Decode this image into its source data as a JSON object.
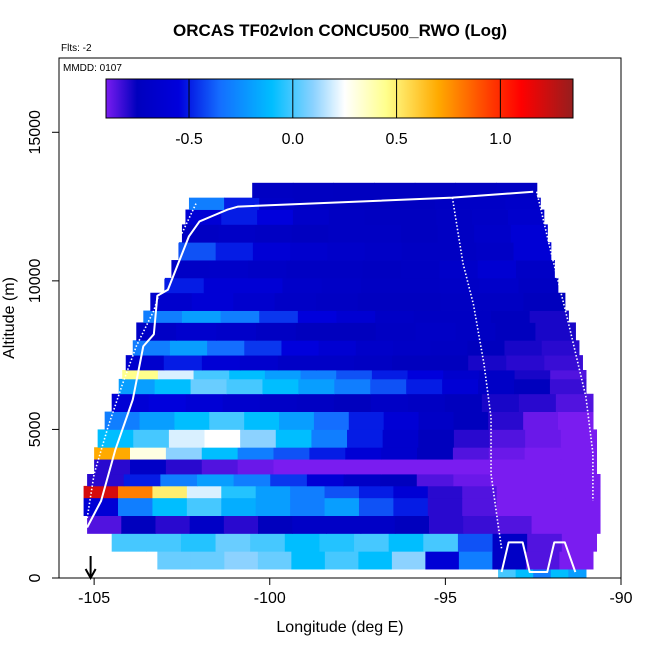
{
  "chart_data": {
    "type": "heatmap",
    "title": "ORCAS TF02vlon CONCU500_RWO (Log)",
    "subtitle_flts": "Flts: -2",
    "date_label": "MMDD: 0107",
    "xlabel": "Longitude (deg E)",
    "ylabel": "Altitude (m)",
    "xlim": [
      -106,
      -90
    ],
    "ylim": [
      0,
      17500
    ],
    "xticks": [
      -105,
      -100,
      -95,
      -90
    ],
    "xtick_labels": [
      "-105",
      "-100",
      "-95",
      "-90"
    ],
    "yticks": [
      0,
      5000,
      10000,
      15000
    ],
    "ytick_labels": [
      "0",
      "5000",
      "10000",
      "15000"
    ],
    "colorbar": {
      "range": [
        -0.9,
        1.35
      ],
      "ticks": [
        -0.5,
        0.0,
        0.5,
        1.0
      ],
      "tick_labels": [
        "-0.5",
        "0.0",
        "0.5",
        "1.0"
      ],
      "placement": "top-inside"
    },
    "colors": {
      "low": "#7a1cf0",
      "mid_low": "#0000b4",
      "cyan": "#00c0ff",
      "white": "#ffffff",
      "yellow": "#ffff80",
      "orange": "#ff9000",
      "red": "#ff0000",
      "dark_red": "#9a1f1f",
      "flight_track": "#ffffff"
    },
    "flight_start_marker": {
      "longitude": -105.1,
      "symbol": "down-arrow"
    },
    "coverage_outline": {
      "left_edge": [
        [
          -105.2,
          1700
        ],
        [
          -104.8,
          4700
        ],
        [
          -104.1,
          6800
        ],
        [
          -103.7,
          8200
        ],
        [
          -103.2,
          9500
        ],
        [
          -102.5,
          12000
        ],
        [
          -102.3,
          12800
        ]
      ],
      "top_edge": [
        [
          -102.3,
          12800
        ],
        [
          -97.0,
          13100
        ],
        [
          -94.8,
          13000
        ],
        [
          -92.4,
          13200
        ]
      ],
      "right_edge": [
        [
          -92.4,
          13200
        ],
        [
          -92.0,
          11500
        ],
        [
          -91.8,
          10000
        ],
        [
          -91.4,
          8000
        ],
        [
          -90.9,
          6000
        ],
        [
          -90.7,
          4000
        ],
        [
          -90.6,
          2500
        ],
        [
          -90.8,
          500
        ]
      ]
    },
    "flight_track": {
      "solid": [
        [
          -105.2,
          1700
        ],
        [
          -104.8,
          2600
        ],
        [
          -104.4,
          4300
        ],
        [
          -103.9,
          6000
        ],
        [
          -103.6,
          7800
        ],
        [
          -103.3,
          8200
        ],
        [
          -103.2,
          9500
        ],
        [
          -102.9,
          9700
        ],
        [
          -102.3,
          11500
        ],
        [
          -102.0,
          12000
        ],
        [
          -101.6,
          12200
        ],
        [
          -101.2,
          12400
        ],
        [
          -100.9,
          12500
        ],
        [
          -94.8,
          12800
        ],
        [
          -92.5,
          13000
        ]
      ],
      "dotted": [
        [
          -102.1,
          12600
        ],
        [
          -102.5,
          11600
        ],
        [
          -102.9,
          10500
        ],
        [
          -103.3,
          9000
        ],
        [
          -103.8,
          7800
        ],
        [
          -104.2,
          6500
        ],
        [
          -104.6,
          5100
        ],
        [
          -105.0,
          3500
        ],
        [
          -105.2,
          2000
        ]
      ],
      "descent_dotted": [
        [
          -94.8,
          12800
        ],
        [
          -94.5,
          10600
        ],
        [
          -94.2,
          9200
        ],
        [
          -93.9,
          7200
        ],
        [
          -93.7,
          5400
        ],
        [
          -93.7,
          3500
        ],
        [
          -93.5,
          1800
        ],
        [
          -93.4,
          1000
        ]
      ],
      "right_dotted": [
        [
          -92.4,
          13000
        ],
        [
          -92.0,
          11000
        ],
        [
          -91.5,
          8600
        ],
        [
          -91.0,
          6100
        ],
        [
          -90.8,
          4200
        ],
        [
          -90.8,
          2600
        ]
      ],
      "low_legs": [
        [
          -93.4,
          200
        ],
        [
          -93.2,
          1200
        ],
        [
          -92.8,
          1200
        ],
        [
          -92.6,
          200
        ],
        [
          -92.1,
          200
        ],
        [
          -91.9,
          1200
        ],
        [
          -91.6,
          1200
        ],
        [
          -91.3,
          200
        ]
      ]
    },
    "bands": [
      {
        "alt": [
          0,
          300
        ],
        "lon": [
          -93.5,
          -91.0
        ],
        "values": [
          0.0,
          -0.1,
          -0.3,
          -0.1,
          -0.2
        ]
      },
      {
        "alt": [
          300,
          900
        ],
        "lon": [
          -103.2,
          -90.8
        ],
        "values": [
          0.05,
          0.05,
          0.1,
          0.05,
          -0.1,
          0.0,
          -0.1,
          0.1,
          -0.6,
          -0.3,
          -0.7,
          -0.85,
          -0.9
        ]
      },
      {
        "alt": [
          900,
          1500
        ],
        "lon": [
          -104.5,
          -90.7
        ],
        "values": [
          0.0,
          0.0,
          -0.05,
          0.05,
          0.0,
          -0.1,
          -0.05,
          0.0,
          -0.1,
          0.0,
          -0.4,
          -0.7,
          -0.85,
          -0.9
        ]
      },
      {
        "alt": [
          1500,
          2100
        ],
        "lon": [
          -105.2,
          -90.6
        ],
        "values": [
          -0.85,
          -0.75,
          -0.8,
          -0.7,
          -0.8,
          -0.75,
          -0.7,
          -0.7,
          -0.7,
          -0.75,
          -0.8,
          -0.82,
          -0.85,
          -0.9,
          -0.9
        ]
      },
      {
        "alt": [
          2100,
          2700
        ],
        "lon": [
          -105.3,
          -90.6
        ],
        "values": [
          -0.6,
          -0.3,
          -0.1,
          0.0,
          -0.15,
          -0.2,
          -0.3,
          -0.2,
          -0.4,
          -0.5,
          -0.8,
          -0.85,
          -0.9,
          -0.9,
          -0.9
        ]
      },
      {
        "alt": [
          2700,
          3100
        ],
        "lon": [
          -105.3,
          -90.6
        ],
        "values": [
          1.2,
          0.8,
          0.5,
          0.2,
          -0.05,
          -0.2,
          -0.3,
          -0.4,
          -0.5,
          -0.6,
          -0.8,
          -0.85,
          -0.9,
          -0.9,
          -0.9
        ]
      },
      {
        "alt": [
          3100,
          3500
        ],
        "lon": [
          -105.2,
          -90.6
        ],
        "values": [
          -0.8,
          -0.5,
          -0.3,
          -0.2,
          -0.3,
          -0.45,
          -0.6,
          -0.7,
          -0.75,
          -0.85,
          -0.88,
          -0.9,
          -0.9,
          -0.9
        ]
      },
      {
        "alt": [
          3500,
          4000
        ],
        "lon": [
          -105.0,
          -90.7
        ],
        "values": [
          -0.8,
          -0.7,
          -0.8,
          -0.85,
          -0.88,
          -0.9,
          -0.9,
          -0.9,
          -0.9,
          -0.9,
          -0.9,
          -0.9,
          -0.9,
          -0.9
        ]
      },
      {
        "alt": [
          4000,
          4400
        ],
        "lon": [
          -105.0,
          -90.7
        ],
        "values": [
          0.7,
          0.3,
          0.1,
          -0.1,
          -0.3,
          -0.4,
          -0.5,
          -0.6,
          -0.65,
          -0.75,
          -0.85,
          -0.88,
          -0.9,
          -0.9
        ]
      },
      {
        "alt": [
          4400,
          5000
        ],
        "lon": [
          -104.9,
          -90.7
        ],
        "values": [
          -0.1,
          0.0,
          0.2,
          0.25,
          0.1,
          -0.1,
          -0.3,
          -0.5,
          -0.65,
          -0.75,
          -0.8,
          -0.85,
          -0.88,
          -0.9
        ]
      },
      {
        "alt": [
          5000,
          5600
        ],
        "lon": [
          -104.7,
          -90.8
        ],
        "values": [
          -0.3,
          -0.2,
          -0.1,
          0.0,
          -0.1,
          -0.2,
          -0.35,
          -0.5,
          -0.6,
          -0.7,
          -0.75,
          -0.8,
          -0.88,
          -0.9
        ]
      },
      {
        "alt": [
          5600,
          6200
        ],
        "lon": [
          -104.5,
          -90.8
        ],
        "values": [
          -0.6,
          -0.55,
          -0.6,
          -0.65,
          -0.7,
          -0.72,
          -0.75,
          -0.7,
          -0.72,
          -0.75,
          -0.78,
          -0.8,
          -0.85
        ]
      },
      {
        "alt": [
          6200,
          6700
        ],
        "lon": [
          -104.3,
          -91.0
        ],
        "values": [
          -0.2,
          -0.1,
          0.05,
          0.0,
          -0.1,
          -0.2,
          -0.3,
          -0.4,
          -0.5,
          -0.6,
          -0.7,
          -0.75,
          -0.82
        ]
      },
      {
        "alt": [
          6700,
          7000
        ],
        "lon": [
          -104.2,
          -91.0
        ],
        "values": [
          0.45,
          0.2,
          0.0,
          -0.1,
          -0.2,
          -0.3,
          -0.4,
          -0.5,
          -0.55,
          -0.65,
          -0.7,
          -0.78,
          -0.85
        ]
      },
      {
        "alt": [
          7000,
          7500
        ],
        "lon": [
          -104.1,
          -91.1
        ],
        "values": [
          -0.65,
          -0.5,
          -0.6,
          -0.65,
          -0.7,
          -0.7,
          -0.72,
          -0.75,
          -0.75,
          -0.78,
          -0.8,
          -0.82
        ]
      },
      {
        "alt": [
          7500,
          8000
        ],
        "lon": [
          -103.9,
          -91.2
        ],
        "values": [
          -0.3,
          -0.2,
          -0.35,
          -0.45,
          -0.55,
          -0.62,
          -0.68,
          -0.7,
          -0.72,
          -0.75,
          -0.78,
          -0.8
        ]
      },
      {
        "alt": [
          8000,
          8600
        ],
        "lon": [
          -103.8,
          -91.3
        ],
        "values": [
          -0.7,
          -0.65,
          -0.68,
          -0.72,
          -0.75,
          -0.75,
          -0.72,
          -0.7,
          -0.72,
          -0.75,
          -0.78
        ]
      },
      {
        "alt": [
          8600,
          9000
        ],
        "lon": [
          -103.6,
          -91.5
        ],
        "values": [
          -0.3,
          -0.2,
          -0.3,
          -0.45,
          -0.55,
          -0.62,
          -0.7,
          -0.72,
          -0.72,
          -0.75,
          -0.78
        ]
      },
      {
        "alt": [
          9000,
          9600
        ],
        "lon": [
          -103.4,
          -91.6
        ],
        "values": [
          -0.65,
          -0.6,
          -0.65,
          -0.7,
          -0.72,
          -0.74,
          -0.74,
          -0.72,
          -0.72,
          -0.75
        ]
      },
      {
        "alt": [
          9600,
          10100
        ],
        "lon": [
          -103.0,
          -91.8
        ],
        "values": [
          -0.5,
          -0.6,
          -0.6,
          -0.68,
          -0.7,
          -0.72,
          -0.72,
          -0.7,
          -0.68,
          -0.72
        ]
      },
      {
        "alt": [
          10100,
          10700
        ],
        "lon": [
          -102.8,
          -91.9
        ],
        "values": [
          -0.7,
          -0.68,
          -0.7,
          -0.72,
          -0.72,
          -0.73,
          -0.72,
          -0.68,
          -0.62,
          -0.7
        ]
      },
      {
        "alt": [
          10700,
          11300
        ],
        "lon": [
          -102.6,
          -92.0
        ],
        "values": [
          -0.4,
          -0.5,
          -0.6,
          -0.65,
          -0.68,
          -0.7,
          -0.72,
          -0.72,
          -0.7,
          -0.6
        ]
      },
      {
        "alt": [
          11300,
          11900
        ],
        "lon": [
          -102.5,
          -92.1
        ],
        "values": [
          -0.72,
          -0.7,
          -0.72,
          -0.74,
          -0.72,
          -0.72,
          -0.74,
          -0.72,
          -0.68,
          -0.6
        ]
      },
      {
        "alt": [
          11900,
          12400
        ],
        "lon": [
          -102.4,
          -92.2
        ],
        "values": [
          -0.6,
          -0.5,
          -0.55,
          -0.68,
          -0.72,
          -0.73,
          -0.74,
          -0.72,
          -0.7,
          -0.65
        ]
      },
      {
        "alt": [
          12400,
          12800
        ],
        "lon": [
          -102.3,
          -92.3
        ],
        "values": [
          -0.3,
          -0.5,
          -0.7,
          -0.73,
          -0.74,
          -0.74,
          -0.74,
          -0.72,
          -0.7,
          -0.68
        ]
      },
      {
        "alt": [
          12800,
          13300
        ],
        "lon": [
          -100.5,
          -92.4
        ],
        "values": [
          -0.72,
          -0.73,
          -0.74,
          -0.74,
          -0.74,
          -0.73,
          -0.72
        ]
      }
    ]
  }
}
